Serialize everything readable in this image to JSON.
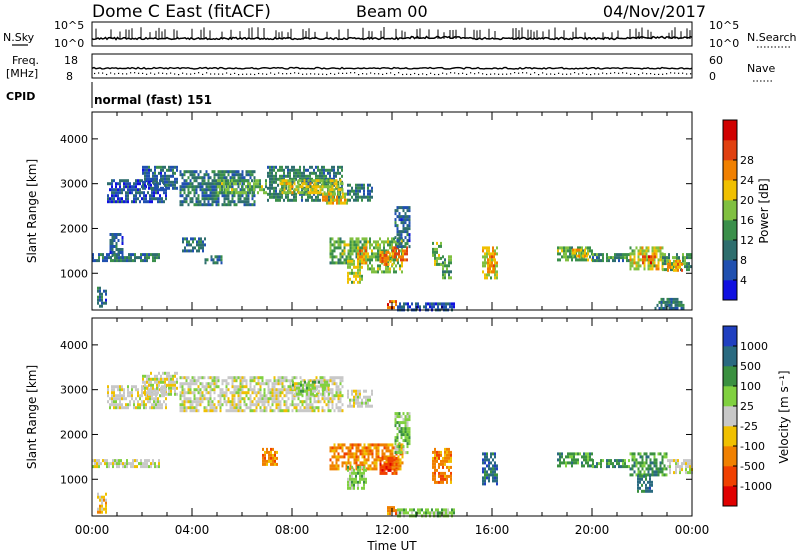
{
  "header": {
    "station": "Dome C East (fitACF)",
    "beam": "Beam 00",
    "date": "04/Nov/2017"
  },
  "noise_panel": {
    "left_label": "N.Sky",
    "right_label": "N.Search",
    "left_ticks": [
      "10^5",
      "10^0"
    ],
    "right_ticks": [
      "10^5",
      "10^0"
    ]
  },
  "freq_panel": {
    "left_label_1": "Freq.",
    "left_label_2": "[MHz]",
    "right_label": "Nave",
    "left_ticks": [
      "18",
      "8"
    ],
    "right_ticks": [
      "60",
      "0"
    ]
  },
  "cpid": {
    "label": "CPID",
    "value": "normal (fast) 151"
  },
  "colors": {
    "power_scale": [
      "#1010e0",
      "#2050b0",
      "#2e6e6e",
      "#3a8f4a",
      "#80c040",
      "#f0c000",
      "#f08000",
      "#e04010",
      "#d00000"
    ],
    "velocity_scale": [
      "#e00000",
      "#f04000",
      "#f08000",
      "#f0c000",
      "#c8c8c8",
      "#80d040",
      "#3a9040",
      "#2a6a80",
      "#2040c0"
    ]
  },
  "chart_data": [
    {
      "type": "heatmap",
      "panel": "power",
      "ylabel": "Slant Range [km]",
      "ylim": [
        180,
        4600
      ],
      "yticks": [
        "1000",
        "2000",
        "3000",
        "4000"
      ],
      "xlim_hours": [
        0,
        24
      ],
      "colorbar_label": "Power [dB]",
      "colorbar_range": [
        0,
        32
      ],
      "colorbar_ticks": [
        "4",
        "8",
        "12",
        "16",
        "20",
        "24",
        "28"
      ],
      "regions": [
        {
          "t0": 0.6,
          "t1": 3.0,
          "r0": 2600,
          "r1": 3100,
          "value": 6
        },
        {
          "t0": 2.0,
          "t1": 3.4,
          "r0": 2900,
          "r1": 3400,
          "value": 7
        },
        {
          "t0": 3.5,
          "t1": 6.5,
          "r0": 2500,
          "r1": 3300,
          "value": 9
        },
        {
          "t0": 5.0,
          "t1": 7.0,
          "r0": 2800,
          "r1": 3100,
          "value": 14
        },
        {
          "t0": 7.0,
          "t1": 10.0,
          "r0": 2600,
          "r1": 3400,
          "value": 10
        },
        {
          "t0": 7.5,
          "t1": 10.0,
          "r0": 2800,
          "r1": 3100,
          "value": 18
        },
        {
          "t0": 9.2,
          "t1": 10.2,
          "r0": 2550,
          "r1": 2800,
          "value": 20
        },
        {
          "t0": 10.2,
          "t1": 11.2,
          "r0": 2600,
          "r1": 3000,
          "value": 9
        },
        {
          "t0": 0.0,
          "t1": 2.7,
          "r0": 1250,
          "r1": 1450,
          "value": 9
        },
        {
          "t0": 0.7,
          "t1": 1.2,
          "r0": 1400,
          "r1": 1900,
          "value": 7
        },
        {
          "t0": 3.6,
          "t1": 4.5,
          "r0": 1500,
          "r1": 1800,
          "value": 8
        },
        {
          "t0": 4.5,
          "t1": 5.2,
          "r0": 1250,
          "r1": 1400,
          "value": 9
        },
        {
          "t0": 9.5,
          "t1": 11.0,
          "r0": 1200,
          "r1": 1800,
          "value": 14
        },
        {
          "t0": 10.6,
          "t1": 11.0,
          "r0": 1250,
          "r1": 1600,
          "value": 21
        },
        {
          "t0": 10.2,
          "t1": 10.8,
          "r0": 800,
          "r1": 1300,
          "value": 17
        },
        {
          "t0": 11.0,
          "t1": 12.4,
          "r0": 1050,
          "r1": 1800,
          "value": 15
        },
        {
          "t0": 11.5,
          "t1": 12.0,
          "r0": 1200,
          "r1": 1500,
          "value": 23
        },
        {
          "t0": 12.0,
          "t1": 12.6,
          "r0": 1300,
          "r1": 1600,
          "value": 24
        },
        {
          "t0": 12.1,
          "t1": 12.7,
          "r0": 1600,
          "r1": 2500,
          "value": 7
        },
        {
          "t0": 13.6,
          "t1": 14.0,
          "r0": 1200,
          "r1": 1700,
          "value": 15
        },
        {
          "t0": 14.0,
          "t1": 14.4,
          "r0": 900,
          "r1": 1400,
          "value": 13
        },
        {
          "t0": 15.6,
          "t1": 16.2,
          "r0": 900,
          "r1": 1600,
          "value": 18
        },
        {
          "t0": 15.8,
          "t1": 16.1,
          "r0": 1000,
          "r1": 1400,
          "value": 24
        },
        {
          "t0": 18.6,
          "t1": 20.0,
          "r0": 1300,
          "r1": 1600,
          "value": 14
        },
        {
          "t0": 19.2,
          "t1": 19.8,
          "r0": 1350,
          "r1": 1550,
          "value": 20
        },
        {
          "t0": 20.0,
          "t1": 21.5,
          "r0": 1250,
          "r1": 1450,
          "value": 11
        },
        {
          "t0": 21.5,
          "t1": 22.8,
          "r0": 1100,
          "r1": 1600,
          "value": 18
        },
        {
          "t0": 22.0,
          "t1": 22.5,
          "r0": 1200,
          "r1": 1400,
          "value": 25
        },
        {
          "t0": 22.8,
          "t1": 24.0,
          "r0": 1100,
          "r1": 1450,
          "value": 13
        },
        {
          "t0": 23.0,
          "t1": 23.6,
          "r0": 1050,
          "r1": 1300,
          "value": 22
        },
        {
          "t0": 0.2,
          "t1": 0.6,
          "r0": 250,
          "r1": 700,
          "value": 7
        },
        {
          "t0": 11.8,
          "t1": 12.2,
          "r0": 200,
          "r1": 400,
          "value": 25
        },
        {
          "t0": 12.2,
          "t1": 14.5,
          "r0": 200,
          "r1": 350,
          "value": 6
        },
        {
          "t0": 22.5,
          "t1": 23.7,
          "r0": 200,
          "r1": 450,
          "value": 9
        }
      ]
    },
    {
      "type": "heatmap",
      "panel": "velocity",
      "ylabel": "Slant Range [km]",
      "ylim": [
        180,
        4600
      ],
      "yticks": [
        "1000",
        "2000",
        "3000",
        "4000"
      ],
      "xlim_hours": [
        0,
        24
      ],
      "xticks": [
        "00:00",
        "04:00",
        "08:00",
        "12:00",
        "16:00",
        "20:00",
        "00:00"
      ],
      "xlabel": "Time UT",
      "colorbar_label": "Velocity [m s⁻¹]",
      "colorbar_ticks": [
        "-1000",
        "-500",
        "-100",
        "-25",
        "25",
        "100",
        "500",
        "1000"
      ],
      "regions": [
        {
          "t0": 0.6,
          "t1": 3.0,
          "r0": 2600,
          "r1": 3100,
          "value": 4
        },
        {
          "t0": 2.0,
          "t1": 3.4,
          "r0": 2900,
          "r1": 3400,
          "value": 4
        },
        {
          "t0": 3.5,
          "t1": 10.0,
          "r0": 2500,
          "r1": 3300,
          "value": 4
        },
        {
          "t0": 8.0,
          "t1": 9.5,
          "r0": 2900,
          "r1": 3200,
          "value": 5
        },
        {
          "t0": 10.2,
          "t1": 11.2,
          "r0": 2600,
          "r1": 3000,
          "value": 4
        },
        {
          "t0": 0.0,
          "t1": 2.7,
          "r0": 1250,
          "r1": 1450,
          "value": 4
        },
        {
          "t0": 6.8,
          "t1": 7.4,
          "r0": 1300,
          "r1": 1700,
          "value": 2
        },
        {
          "t0": 9.5,
          "t1": 12.4,
          "r0": 1200,
          "r1": 1800,
          "value": 2
        },
        {
          "t0": 10.2,
          "t1": 11.0,
          "r0": 800,
          "r1": 1300,
          "value": 5
        },
        {
          "t0": 11.5,
          "t1": 12.2,
          "r0": 1100,
          "r1": 1500,
          "value": 1
        },
        {
          "t0": 12.1,
          "t1": 12.7,
          "r0": 1600,
          "r1": 2500,
          "value": 5
        },
        {
          "t0": 13.6,
          "t1": 14.4,
          "r0": 900,
          "r1": 1700,
          "value": 2
        },
        {
          "t0": 15.6,
          "t1": 16.2,
          "r0": 900,
          "r1": 1600,
          "value": 7
        },
        {
          "t0": 18.6,
          "t1": 20.0,
          "r0": 1300,
          "r1": 1600,
          "value": 6
        },
        {
          "t0": 20.0,
          "t1": 21.5,
          "r0": 1250,
          "r1": 1450,
          "value": 6
        },
        {
          "t0": 21.5,
          "t1": 23.0,
          "r0": 1100,
          "r1": 1600,
          "value": 6
        },
        {
          "t0": 21.8,
          "t1": 22.4,
          "r0": 700,
          "r1": 1100,
          "value": 7
        },
        {
          "t0": 23.0,
          "t1": 24.0,
          "r0": 1150,
          "r1": 1450,
          "value": 4
        },
        {
          "t0": 0.2,
          "t1": 0.6,
          "r0": 250,
          "r1": 700,
          "value": 3
        },
        {
          "t0": 11.8,
          "t1": 12.2,
          "r0": 200,
          "r1": 400,
          "value": 2
        },
        {
          "t0": 12.2,
          "t1": 14.5,
          "r0": 200,
          "r1": 350,
          "value": 5
        }
      ]
    }
  ]
}
